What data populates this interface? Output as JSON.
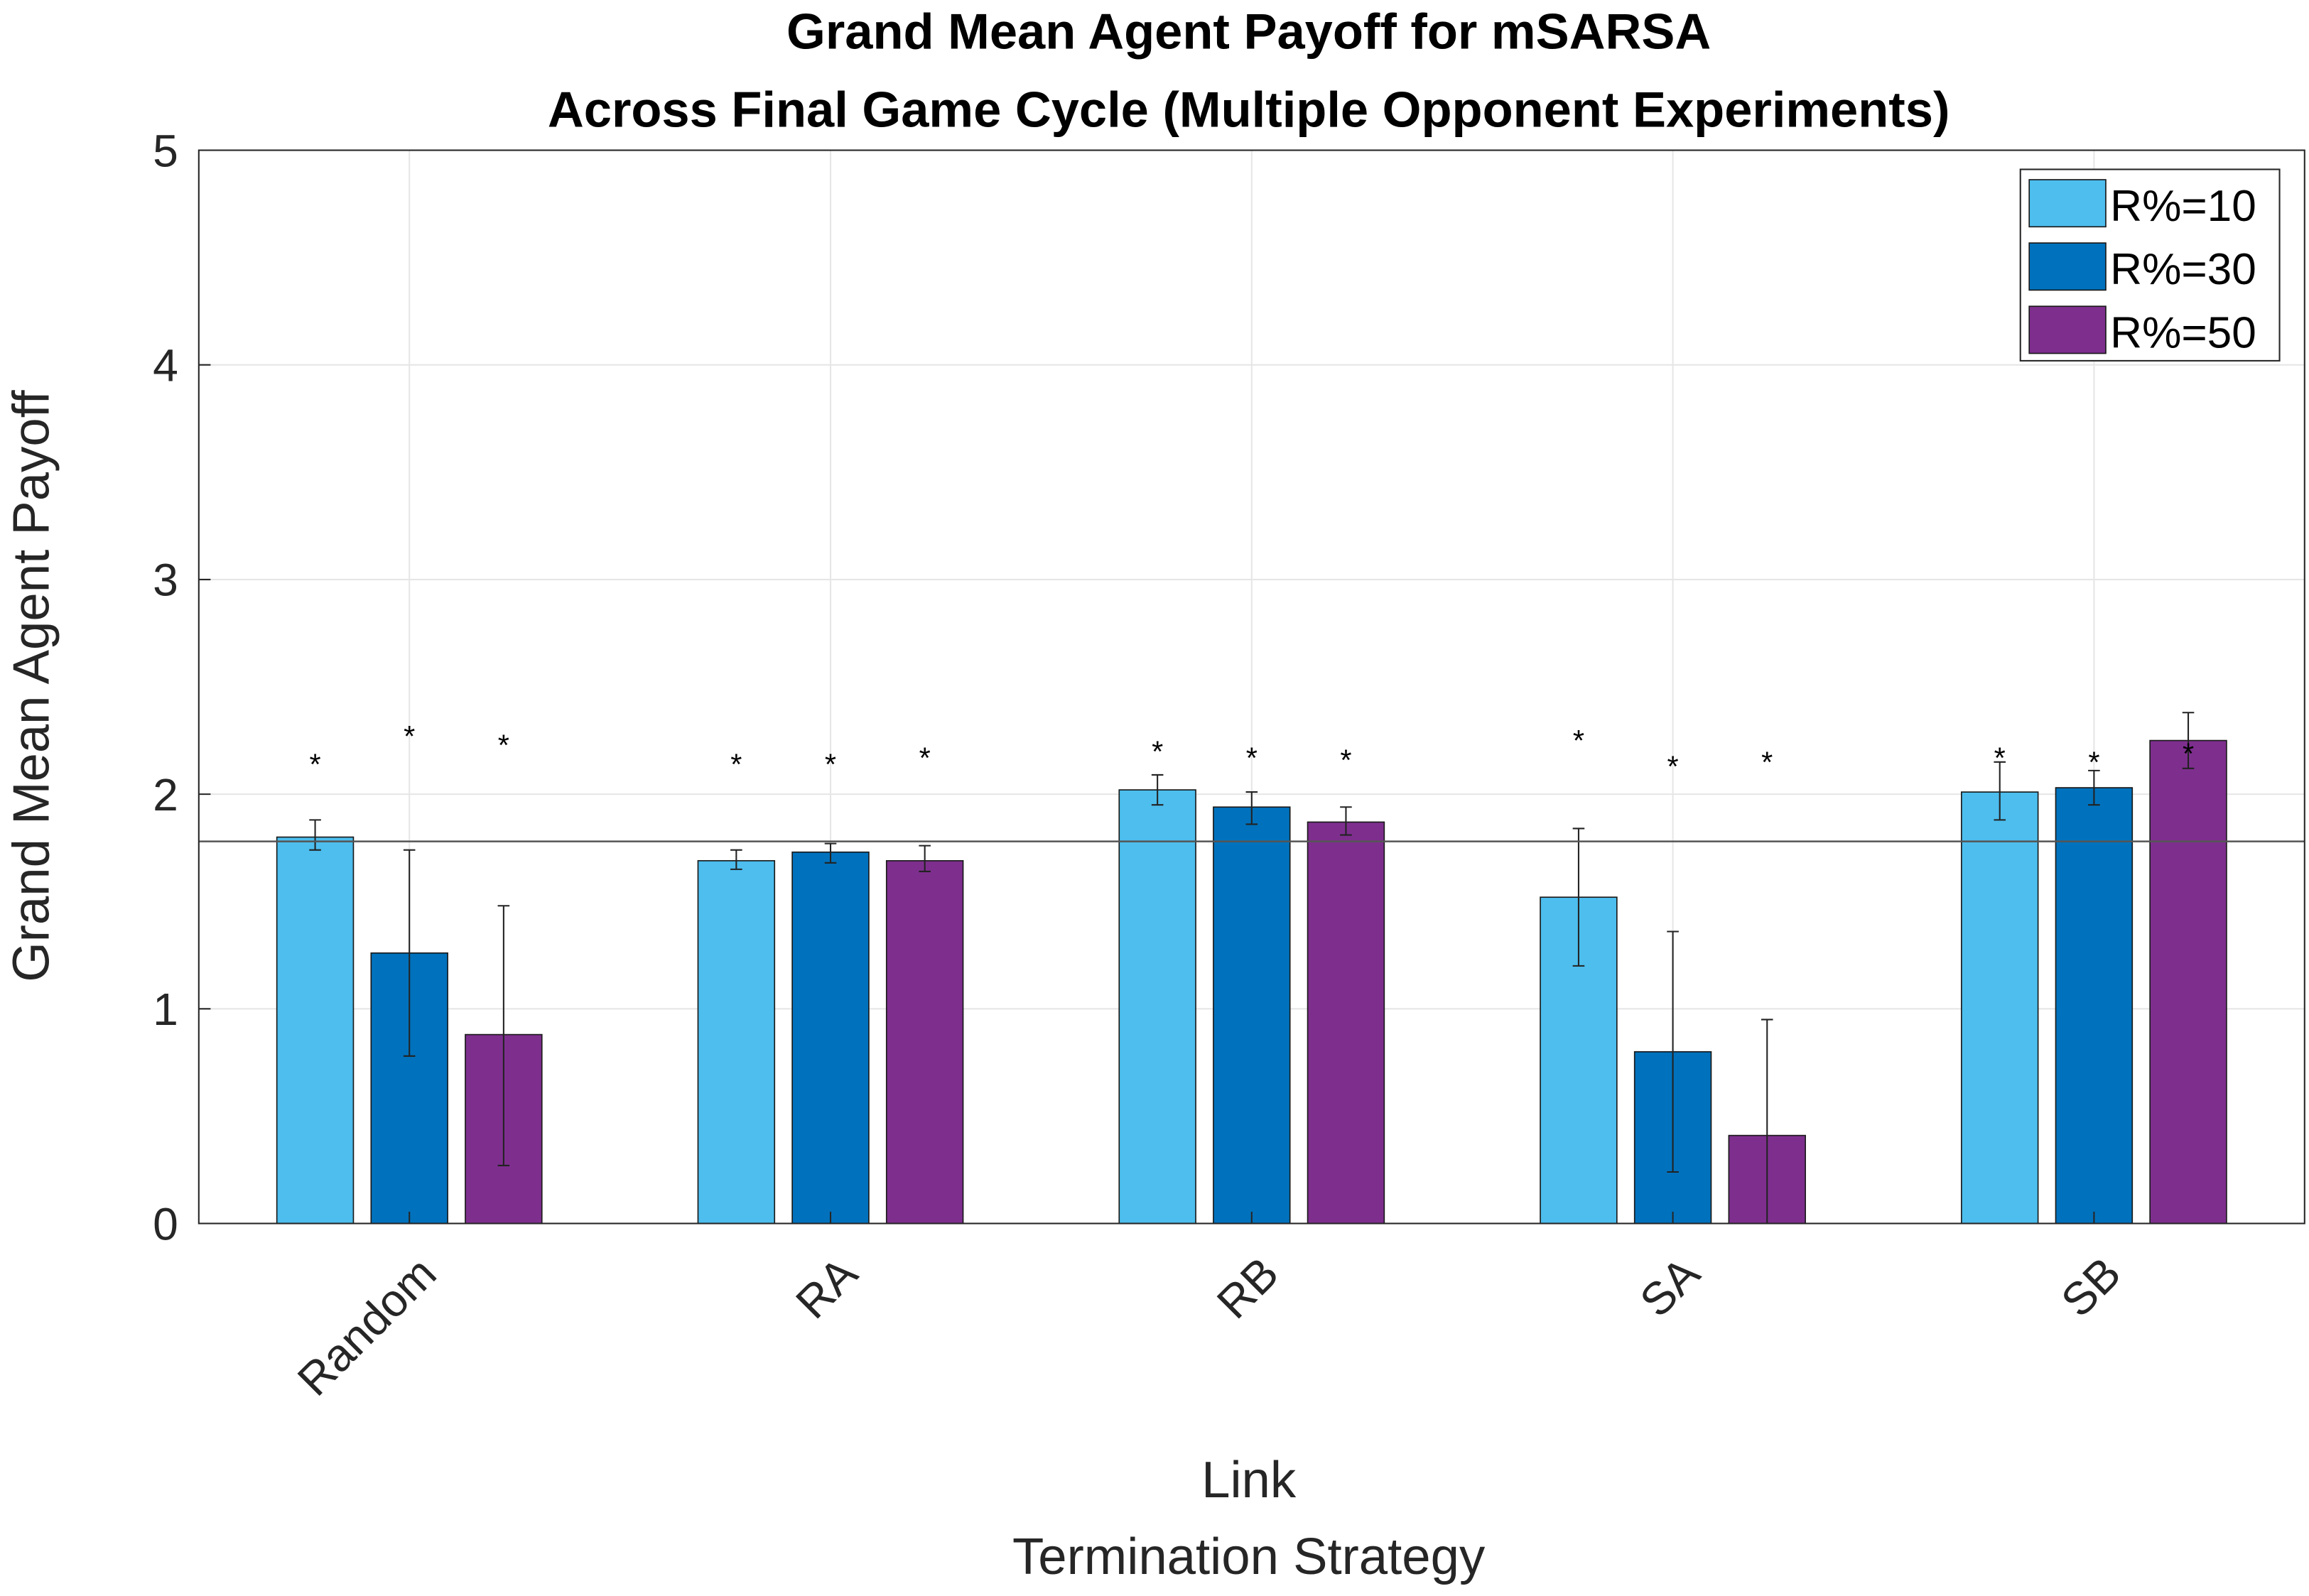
{
  "chart_data": {
    "type": "bar",
    "title": [
      "Grand Mean Agent Payoff for mSARSA",
      "Across Final Game Cycle (Multiple Opponent Experiments)"
    ],
    "xlabel": [
      "Link",
      "Termination Strategy"
    ],
    "ylabel": "Grand Mean Agent Payoff",
    "ylim": [
      0,
      5
    ],
    "yticks": [
      "0",
      "1",
      "2",
      "3",
      "4",
      "5"
    ],
    "grid": true,
    "legend_position": "top-right",
    "categories": [
      "Random",
      "RA",
      "RB",
      "SA",
      "SB"
    ],
    "reference_line": 1.78,
    "series": [
      {
        "name": "R%=10",
        "color": "#4DBEEE",
        "values": [
          1.8,
          1.69,
          2.02,
          1.52,
          2.01
        ],
        "err_low": [
          1.74,
          1.65,
          1.95,
          1.2,
          1.88
        ],
        "err_high": [
          1.88,
          1.74,
          2.09,
          1.84,
          2.15
        ],
        "significance_markers": [
          2.16,
          2.16,
          2.22,
          2.27,
          2.19
        ]
      },
      {
        "name": "R%=30",
        "color": "#0072BD",
        "values": [
          1.26,
          1.73,
          1.94,
          0.8,
          2.03
        ],
        "err_low": [
          0.78,
          1.68,
          1.86,
          0.24,
          1.95
        ],
        "err_high": [
          1.74,
          1.77,
          2.01,
          1.36,
          2.11
        ],
        "significance_markers": [
          2.29,
          2.16,
          2.19,
          2.15,
          2.17
        ]
      },
      {
        "name": "R%=50",
        "color": "#7E2F8E",
        "values": [
          0.88,
          1.69,
          1.87,
          0.41,
          2.25
        ],
        "err_low": [
          0.27,
          1.64,
          1.81,
          0.0,
          2.12
        ],
        "err_high": [
          1.48,
          1.76,
          1.94,
          0.95,
          2.38
        ],
        "significance_markers": [
          2.25,
          2.19,
          2.18,
          2.17,
          2.21
        ]
      }
    ]
  }
}
